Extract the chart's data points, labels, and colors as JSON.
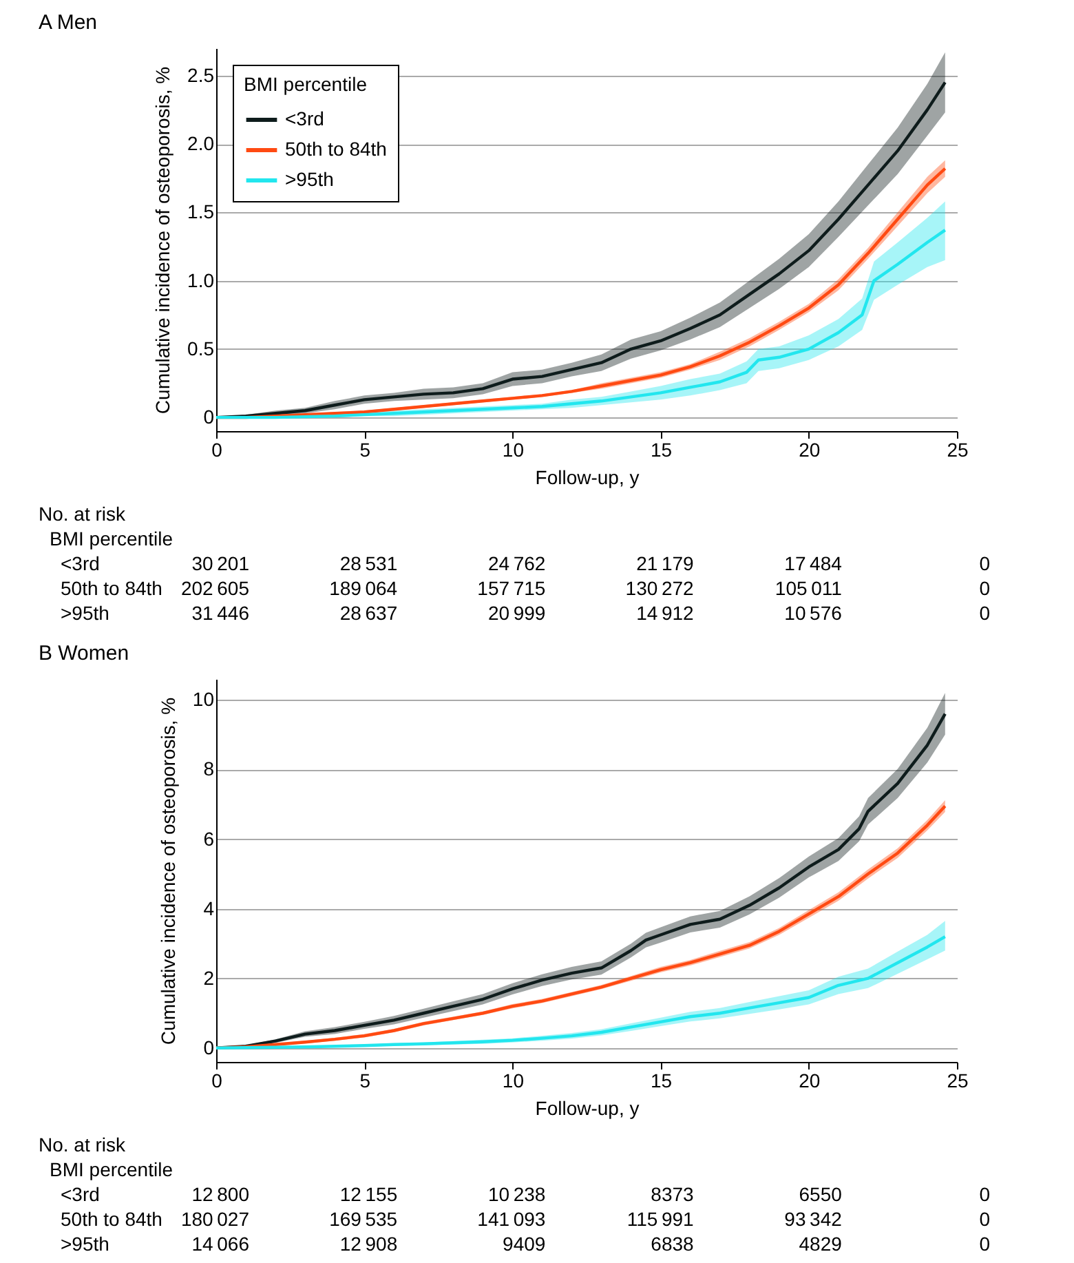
{
  "chart_data": [
    {
      "type": "line",
      "title": "A Men",
      "xlabel": "Follow-up, y",
      "ylabel": "Cumulative incidence of osteoporosis, %",
      "legend_title": "BMI percentile",
      "legend": "top left",
      "grid": "y",
      "xlim": [
        0,
        25
      ],
      "xticks": [
        0,
        5,
        10,
        15,
        20,
        25
      ],
      "ylim": [
        -0.1,
        2.7
      ],
      "yticks": [
        0,
        0.5,
        {
          "value": 1,
          "label": "1.0"
        },
        1.5,
        {
          "value": 2,
          "label": "2.0"
        },
        2.5
      ],
      "series": [
        {
          "name": "<3rd",
          "color": "#0e1c1c",
          "x": [
            0,
            1,
            2,
            3,
            4,
            5,
            6,
            7,
            8,
            9,
            10,
            11,
            12,
            13,
            14,
            15,
            16,
            17,
            18,
            19,
            20,
            21,
            22,
            23,
            24,
            24.6
          ],
          "values": [
            0,
            0.01,
            0.03,
            0.05,
            0.09,
            0.13,
            0.15,
            0.17,
            0.18,
            0.21,
            0.28,
            0.3,
            0.35,
            0.4,
            0.5,
            0.56,
            0.65,
            0.75,
            0.9,
            1.05,
            1.22,
            1.45,
            1.7,
            1.95,
            2.25,
            2.45
          ],
          "lower": [
            0,
            0,
            0.01,
            0.03,
            0.06,
            0.1,
            0.12,
            0.13,
            0.14,
            0.17,
            0.23,
            0.25,
            0.3,
            0.34,
            0.43,
            0.49,
            0.57,
            0.66,
            0.8,
            0.94,
            1.1,
            1.32,
            1.55,
            1.78,
            2.06,
            2.23
          ],
          "upper": [
            0,
            0.02,
            0.05,
            0.07,
            0.12,
            0.16,
            0.18,
            0.21,
            0.22,
            0.25,
            0.33,
            0.35,
            0.4,
            0.46,
            0.57,
            0.63,
            0.73,
            0.84,
            1.0,
            1.16,
            1.34,
            1.58,
            1.85,
            2.12,
            2.44,
            2.67
          ]
        },
        {
          "name": "50th to 84th",
          "color": "#ff4a12",
          "x": [
            0,
            1,
            2,
            3,
            4,
            5,
            6,
            7,
            8,
            9,
            10,
            11,
            12,
            13,
            14,
            15,
            16,
            17,
            18,
            19,
            20,
            21,
            22,
            23,
            24,
            24.6
          ],
          "values": [
            0,
            0,
            0.01,
            0.02,
            0.03,
            0.04,
            0.06,
            0.08,
            0.1,
            0.12,
            0.14,
            0.16,
            0.19,
            0.23,
            0.27,
            0.31,
            0.37,
            0.45,
            0.55,
            0.67,
            0.8,
            0.97,
            1.2,
            1.45,
            1.7,
            1.82
          ],
          "lower": [
            0,
            0,
            0,
            0.01,
            0.02,
            0.03,
            0.05,
            0.07,
            0.09,
            0.11,
            0.13,
            0.15,
            0.18,
            0.21,
            0.25,
            0.29,
            0.35,
            0.42,
            0.52,
            0.64,
            0.77,
            0.93,
            1.16,
            1.4,
            1.64,
            1.76
          ],
          "upper": [
            0,
            0,
            0.02,
            0.03,
            0.04,
            0.05,
            0.07,
            0.09,
            0.11,
            0.13,
            0.15,
            0.17,
            0.2,
            0.25,
            0.29,
            0.33,
            0.39,
            0.48,
            0.58,
            0.7,
            0.83,
            1.01,
            1.24,
            1.5,
            1.76,
            1.88
          ]
        },
        {
          "name": ">95th",
          "color": "#22e6ee",
          "x": [
            0,
            2,
            4,
            5,
            6,
            7,
            8,
            9,
            10,
            11,
            12,
            13,
            14,
            15,
            16,
            17,
            17.9,
            18.3,
            19,
            20,
            21,
            21.8,
            22.2,
            23,
            24,
            24.6
          ],
          "values": [
            0,
            0,
            0.01,
            0.02,
            0.03,
            0.04,
            0.05,
            0.06,
            0.07,
            0.08,
            0.1,
            0.12,
            0.15,
            0.18,
            0.22,
            0.26,
            0.33,
            0.42,
            0.44,
            0.5,
            0.62,
            0.75,
            1.0,
            1.12,
            1.28,
            1.37
          ],
          "lower": [
            0,
            0,
            0,
            0.01,
            0.01,
            0.02,
            0.03,
            0.04,
            0.05,
            0.06,
            0.07,
            0.09,
            0.11,
            0.13,
            0.16,
            0.2,
            0.25,
            0.34,
            0.36,
            0.42,
            0.52,
            0.64,
            0.86,
            0.97,
            1.1,
            1.15
          ],
          "upper": [
            0,
            0.01,
            0.02,
            0.03,
            0.05,
            0.06,
            0.07,
            0.08,
            0.09,
            0.1,
            0.13,
            0.15,
            0.19,
            0.23,
            0.28,
            0.32,
            0.41,
            0.5,
            0.52,
            0.6,
            0.72,
            0.87,
            1.14,
            1.28,
            1.46,
            1.58
          ]
        }
      ],
      "annotations": [
        "No. at risk",
        "BMI percentile",
        "<3rd",
        "30 201",
        "28 531",
        "24 762",
        "21 179",
        "17 484",
        "0",
        "50th to 84th",
        "202 605",
        "189 064",
        "157 715",
        "130 272",
        "105 011",
        "0",
        ">95th",
        "31 446",
        "28 637",
        "20 999",
        "14 912",
        "10 576",
        "0"
      ]
    },
    {
      "type": "line",
      "title": "B Women",
      "xlabel": "Follow-up, y",
      "ylabel": "Cumulative incidence of osteoporosis, %",
      "grid": "y",
      "xlim": [
        0,
        25
      ],
      "xticks": [
        0,
        5,
        10,
        15,
        20,
        25
      ],
      "ylim": [
        -0.4,
        10.6
      ],
      "yticks": [
        0,
        2,
        4,
        6,
        8,
        10
      ],
      "series": [
        {
          "color": "#0e1c1c",
          "x": [
            0,
            1,
            2,
            3,
            4,
            5,
            6,
            7,
            8,
            9,
            10,
            11,
            12,
            13,
            14,
            14.5,
            15,
            16,
            17,
            18,
            19,
            20,
            21,
            21.7,
            22,
            23,
            24,
            24.6
          ],
          "values": [
            0,
            0.05,
            0.2,
            0.4,
            0.5,
            0.65,
            0.8,
            1.0,
            1.2,
            1.4,
            1.7,
            1.95,
            2.15,
            2.3,
            2.8,
            3.1,
            3.25,
            3.55,
            3.7,
            4.1,
            4.6,
            5.2,
            5.7,
            6.3,
            6.8,
            7.6,
            8.7,
            9.6
          ],
          "lower": [
            0,
            0.02,
            0.15,
            0.32,
            0.4,
            0.55,
            0.68,
            0.87,
            1.06,
            1.25,
            1.54,
            1.78,
            1.97,
            2.11,
            2.6,
            2.89,
            3.03,
            3.32,
            3.46,
            3.84,
            4.32,
            4.9,
            5.37,
            5.94,
            6.42,
            7.18,
            8.2,
            9.0
          ],
          "upper": [
            0,
            0.08,
            0.25,
            0.48,
            0.6,
            0.75,
            0.92,
            1.13,
            1.34,
            1.55,
            1.86,
            2.12,
            2.33,
            2.49,
            3.0,
            3.31,
            3.47,
            3.78,
            3.94,
            4.36,
            4.88,
            5.5,
            6.03,
            6.66,
            7.18,
            8.02,
            9.2,
            10.2
          ]
        },
        {
          "color": "#ff4a12",
          "x": [
            0,
            1,
            2,
            3,
            4,
            5,
            6,
            7,
            8,
            9,
            10,
            11,
            12,
            13,
            14,
            15,
            16,
            17,
            18,
            19,
            20,
            21,
            22,
            23,
            24,
            24.6
          ],
          "values": [
            0,
            0.03,
            0.1,
            0.17,
            0.25,
            0.35,
            0.5,
            0.7,
            0.85,
            1.0,
            1.2,
            1.35,
            1.55,
            1.75,
            2.0,
            2.25,
            2.45,
            2.7,
            2.95,
            3.35,
            3.85,
            4.35,
            5.0,
            5.6,
            6.4,
            6.95
          ],
          "lower": [
            0,
            0.01,
            0.07,
            0.13,
            0.21,
            0.3,
            0.45,
            0.65,
            0.8,
            0.95,
            1.14,
            1.29,
            1.49,
            1.69,
            1.93,
            2.17,
            2.37,
            2.61,
            2.86,
            3.25,
            3.74,
            4.23,
            4.87,
            5.46,
            6.25,
            6.78
          ],
          "upper": [
            0,
            0.05,
            0.13,
            0.21,
            0.29,
            0.4,
            0.55,
            0.75,
            0.9,
            1.05,
            1.26,
            1.41,
            1.61,
            1.81,
            2.07,
            2.33,
            2.53,
            2.79,
            3.04,
            3.45,
            3.96,
            4.47,
            5.13,
            5.74,
            6.55,
            7.12
          ]
        },
        {
          "color": "#22e6ee",
          "x": [
            0,
            3,
            5,
            6,
            7,
            8,
            9,
            10,
            11,
            12,
            13,
            14,
            15,
            16,
            17,
            18,
            19,
            20,
            21,
            22,
            23,
            24,
            24.6
          ],
          "values": [
            0,
            0.03,
            0.07,
            0.1,
            0.12,
            0.15,
            0.18,
            0.22,
            0.28,
            0.35,
            0.45,
            0.6,
            0.75,
            0.9,
            1.0,
            1.15,
            1.3,
            1.45,
            1.8,
            2.0,
            2.45,
            2.9,
            3.2
          ],
          "lower": [
            0,
            0.01,
            0.04,
            0.06,
            0.08,
            0.1,
            0.12,
            0.16,
            0.21,
            0.27,
            0.36,
            0.49,
            0.63,
            0.76,
            0.85,
            0.98,
            1.11,
            1.25,
            1.55,
            1.72,
            2.13,
            2.55,
            2.8
          ],
          "upper": [
            0,
            0.05,
            0.1,
            0.14,
            0.16,
            0.2,
            0.24,
            0.28,
            0.35,
            0.43,
            0.54,
            0.71,
            0.87,
            1.04,
            1.15,
            1.32,
            1.49,
            1.66,
            2.05,
            2.28,
            2.77,
            3.25,
            3.65
          ]
        }
      ],
      "annotations": [
        "No. at risk",
        "BMI percentile",
        "<3rd",
        "12 800",
        "12 155",
        "10 238",
        "8373",
        "6550",
        "0",
        "50th to 84th",
        "180 027",
        "169 535",
        "141 093",
        "115 991",
        "93 342",
        "0",
        ">95th",
        "14 066",
        "12 908",
        "9409",
        "6838",
        "4829",
        "0"
      ]
    }
  ]
}
